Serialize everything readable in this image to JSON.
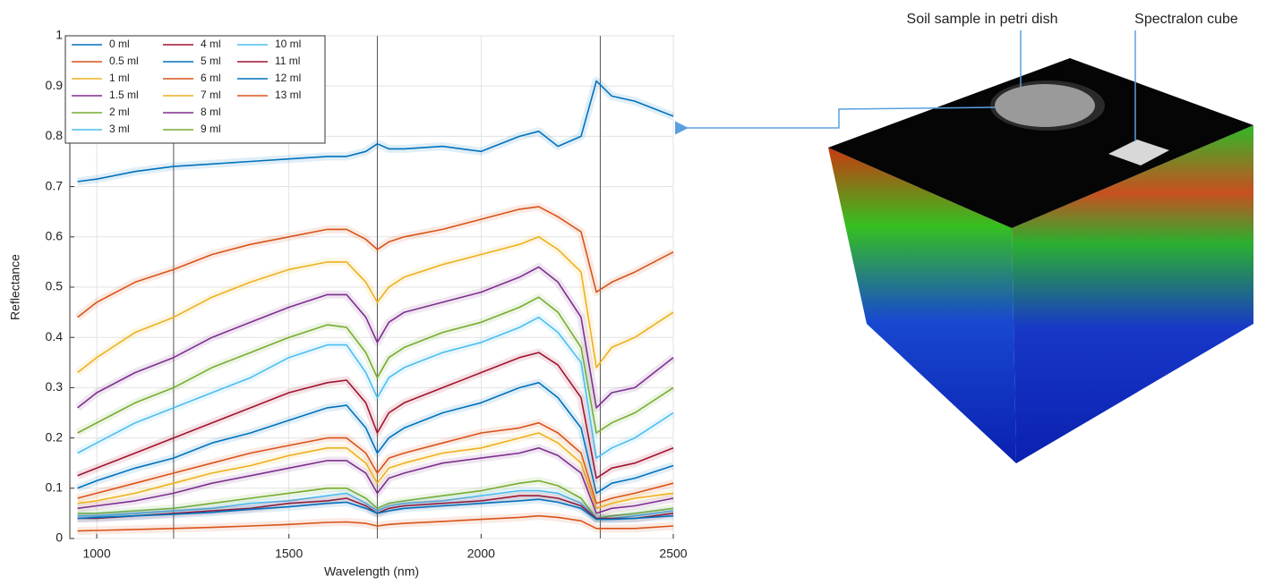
{
  "chart_data": {
    "type": "line",
    "xlabel": "Wavelength (nm)",
    "ylabel": "Reflectance",
    "x": [
      950,
      1000,
      1100,
      1200,
      1300,
      1400,
      1500,
      1600,
      1650,
      1700,
      1730,
      1760,
      1800,
      1900,
      2000,
      2100,
      2150,
      2200,
      2260,
      2300,
      2340,
      2400,
      2500
    ],
    "xlim": [
      930,
      2500
    ],
    "xticks": [
      1000,
      1500,
      2000,
      2500
    ],
    "ylim": [
      0,
      1
    ],
    "yticks": [
      0,
      0.1,
      0.2,
      0.3,
      0.4,
      0.5,
      0.6,
      0.7,
      0.8,
      0.9,
      1
    ],
    "grid": true,
    "reference_lines": [
      1200,
      1730,
      2310
    ],
    "legend": "upper left",
    "annotations": [
      "Soil sample in petri dish",
      "Spectralon cube"
    ],
    "series": [
      {
        "name": "0 ml",
        "color": "#0072BD",
        "values": [
          0.71,
          0.715,
          0.73,
          0.74,
          0.745,
          0.75,
          0.755,
          0.76,
          0.76,
          0.77,
          0.785,
          0.775,
          0.775,
          0.78,
          0.77,
          0.8,
          0.81,
          0.78,
          0.8,
          0.91,
          0.88,
          0.87,
          0.84
        ]
      },
      {
        "name": "0.5 ml",
        "color": "#D95319",
        "values": [
          0.44,
          0.47,
          0.51,
          0.535,
          0.565,
          0.585,
          0.6,
          0.615,
          0.615,
          0.595,
          0.575,
          0.59,
          0.6,
          0.615,
          0.635,
          0.655,
          0.66,
          0.64,
          0.61,
          0.49,
          0.51,
          0.53,
          0.57
        ]
      },
      {
        "name": "1 ml",
        "color": "#EDB120",
        "values": [
          0.33,
          0.36,
          0.41,
          0.44,
          0.48,
          0.51,
          0.535,
          0.55,
          0.55,
          0.51,
          0.47,
          0.5,
          0.52,
          0.545,
          0.565,
          0.585,
          0.6,
          0.575,
          0.53,
          0.34,
          0.38,
          0.4,
          0.45
        ]
      },
      {
        "name": "1.5 ml",
        "color": "#7E2F8E",
        "values": [
          0.26,
          0.29,
          0.33,
          0.36,
          0.4,
          0.43,
          0.46,
          0.485,
          0.485,
          0.44,
          0.39,
          0.43,
          0.45,
          0.47,
          0.49,
          0.52,
          0.54,
          0.51,
          0.44,
          0.26,
          0.29,
          0.3,
          0.36
        ]
      },
      {
        "name": "2 ml",
        "color": "#77AC30",
        "values": [
          0.21,
          0.23,
          0.27,
          0.3,
          0.34,
          0.37,
          0.4,
          0.425,
          0.42,
          0.37,
          0.32,
          0.36,
          0.38,
          0.41,
          0.43,
          0.46,
          0.48,
          0.45,
          0.38,
          0.21,
          0.23,
          0.25,
          0.3
        ]
      },
      {
        "name": "3 ml",
        "color": "#4DBEEE",
        "values": [
          0.17,
          0.19,
          0.23,
          0.26,
          0.29,
          0.32,
          0.36,
          0.385,
          0.385,
          0.33,
          0.28,
          0.32,
          0.34,
          0.37,
          0.39,
          0.42,
          0.44,
          0.41,
          0.35,
          0.16,
          0.18,
          0.2,
          0.25
        ]
      },
      {
        "name": "4 ml",
        "color": "#A2142F",
        "values": [
          0.125,
          0.14,
          0.17,
          0.2,
          0.23,
          0.26,
          0.29,
          0.31,
          0.315,
          0.27,
          0.21,
          0.25,
          0.27,
          0.3,
          0.33,
          0.36,
          0.37,
          0.345,
          0.28,
          0.12,
          0.14,
          0.15,
          0.18
        ]
      },
      {
        "name": "5 ml",
        "color": "#0072BD",
        "values": [
          0.1,
          0.115,
          0.14,
          0.16,
          0.19,
          0.21,
          0.235,
          0.26,
          0.265,
          0.22,
          0.17,
          0.2,
          0.22,
          0.25,
          0.27,
          0.3,
          0.31,
          0.28,
          0.22,
          0.09,
          0.11,
          0.12,
          0.145
        ]
      },
      {
        "name": "6 ml",
        "color": "#D95319",
        "values": [
          0.08,
          0.09,
          0.11,
          0.13,
          0.15,
          0.17,
          0.185,
          0.2,
          0.2,
          0.17,
          0.13,
          0.16,
          0.17,
          0.19,
          0.21,
          0.22,
          0.23,
          0.21,
          0.17,
          0.07,
          0.08,
          0.09,
          0.11
        ]
      },
      {
        "name": "7 ml",
        "color": "#EDB120",
        "values": [
          0.07,
          0.075,
          0.09,
          0.11,
          0.13,
          0.145,
          0.165,
          0.18,
          0.18,
          0.15,
          0.11,
          0.14,
          0.15,
          0.17,
          0.18,
          0.2,
          0.21,
          0.19,
          0.15,
          0.06,
          0.07,
          0.08,
          0.09
        ]
      },
      {
        "name": "8 ml",
        "color": "#7E2F8E",
        "values": [
          0.06,
          0.065,
          0.075,
          0.09,
          0.11,
          0.125,
          0.14,
          0.155,
          0.155,
          0.13,
          0.09,
          0.12,
          0.13,
          0.15,
          0.16,
          0.17,
          0.18,
          0.165,
          0.13,
          0.05,
          0.06,
          0.065,
          0.08
        ]
      },
      {
        "name": "9 ml",
        "color": "#77AC30",
        "values": [
          0.05,
          0.05,
          0.055,
          0.06,
          0.07,
          0.08,
          0.09,
          0.1,
          0.1,
          0.08,
          0.06,
          0.07,
          0.075,
          0.085,
          0.095,
          0.11,
          0.115,
          0.105,
          0.08,
          0.04,
          0.045,
          0.05,
          0.06
        ]
      },
      {
        "name": "10 ml",
        "color": "#4DBEEE",
        "values": [
          0.045,
          0.045,
          0.05,
          0.055,
          0.06,
          0.07,
          0.075,
          0.085,
          0.09,
          0.07,
          0.055,
          0.065,
          0.07,
          0.075,
          0.085,
          0.095,
          0.095,
          0.09,
          0.07,
          0.04,
          0.04,
          0.045,
          0.055
        ]
      },
      {
        "name": "11 ml",
        "color": "#A2142F",
        "values": [
          0.04,
          0.04,
          0.045,
          0.05,
          0.055,
          0.06,
          0.07,
          0.075,
          0.08,
          0.065,
          0.05,
          0.06,
          0.065,
          0.07,
          0.075,
          0.085,
          0.085,
          0.08,
          0.065,
          0.04,
          0.04,
          0.04,
          0.05
        ]
      },
      {
        "name": "12 ml",
        "color": "#0072BD",
        "values": [
          0.04,
          0.042,
          0.045,
          0.048,
          0.052,
          0.058,
          0.063,
          0.07,
          0.072,
          0.06,
          0.05,
          0.055,
          0.06,
          0.065,
          0.07,
          0.075,
          0.078,
          0.072,
          0.06,
          0.038,
          0.038,
          0.04,
          0.045
        ]
      },
      {
        "name": "13 ml",
        "color": "#D95319",
        "values": [
          0.015,
          0.016,
          0.018,
          0.02,
          0.022,
          0.025,
          0.028,
          0.032,
          0.033,
          0.03,
          0.025,
          0.028,
          0.03,
          0.034,
          0.038,
          0.042,
          0.045,
          0.042,
          0.035,
          0.02,
          0.02,
          0.02,
          0.025
        ]
      }
    ]
  }
}
